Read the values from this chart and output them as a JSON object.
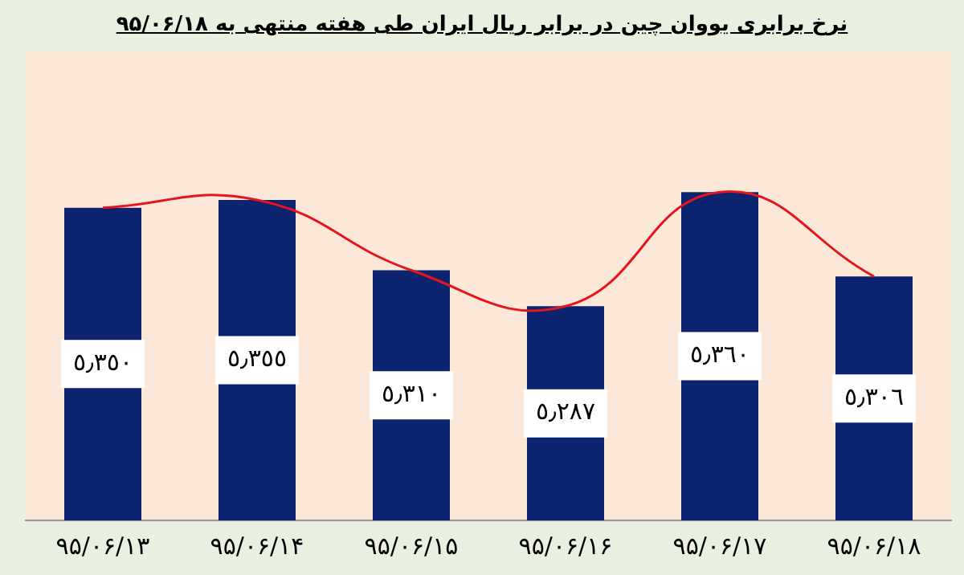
{
  "chart_data": {
    "type": "bar",
    "title": "نرخ برابری یووان چین در برابر ریال ایران طی هفته منتهی به ۹۵/۰۶/۱۸",
    "categories": [
      "۹۵/۰۶/۱۳",
      "۹۵/۰۶/۱۴",
      "۹۵/۰۶/۱۵",
      "۹۵/۰۶/۱۶",
      "۹۵/۰۶/۱۷",
      "۹۵/۰۶/۱۸"
    ],
    "grid": false,
    "legend": false,
    "series": [
      {
        "color": "#0c2470",
        "values": [
          5.35,
          5.355,
          5.31,
          5.287,
          5.36,
          5.306
        ],
        "value_labels": [
          "٥٫٣٥٠",
          "٥٫٣٥٥",
          "٥٫٣١٠",
          "٥٫٢٨٧",
          "٥٫٣٦٠",
          "٥٫٣٠٦"
        ]
      },
      {
        "type": "line",
        "color": "#e8141c",
        "marker": "none",
        "values": [
          5.35,
          5.355,
          5.31,
          5.287,
          5.36,
          5.306
        ]
      }
    ]
  }
}
